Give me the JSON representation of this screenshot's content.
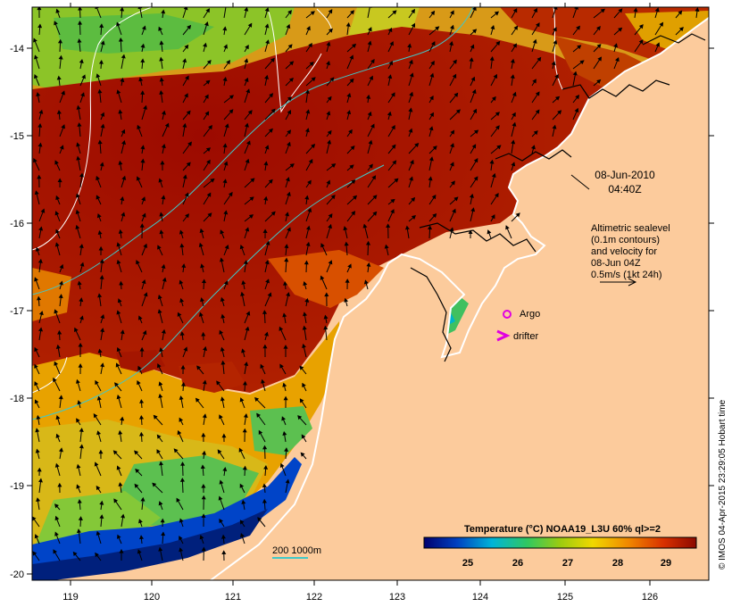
{
  "map": {
    "lon_ticks": [
      "119",
      "120",
      "121",
      "122",
      "123",
      "124",
      "125",
      "126"
    ],
    "lat_ticks": [
      "-14",
      "-15",
      "-16",
      "-17",
      "-18",
      "-19",
      "-20"
    ],
    "timestamp_date": "08-Jun-2010",
    "timestamp_time": "04:40Z",
    "altimetry_note": [
      "Altimetric sealevel",
      "(0.1m contours)",
      "and velocity for",
      "08-Jun 04Z",
      "0.5m/s (1kt 24h)"
    ],
    "argo_label": "Argo",
    "drifter_label": "drifter",
    "depth_contour_label": "200  1000m",
    "credit": "© IMOS 04-Apr-2015 23:29:05 Hobart time",
    "colorbar": {
      "title": "Temperature (°C) NOAA19_L3U 60% ql>=2",
      "ticks": [
        "25",
        "26",
        "27",
        "28",
        "29"
      ]
    },
    "colors": {
      "land": "#fccb9c",
      "sst_warm": "#a41600",
      "sst_mid": "#e8a200",
      "sst_cool": "#6cc838",
      "sst_cold": "#00208c",
      "contour": "#40c8c8",
      "argo_marker": "#e000e0"
    }
  }
}
